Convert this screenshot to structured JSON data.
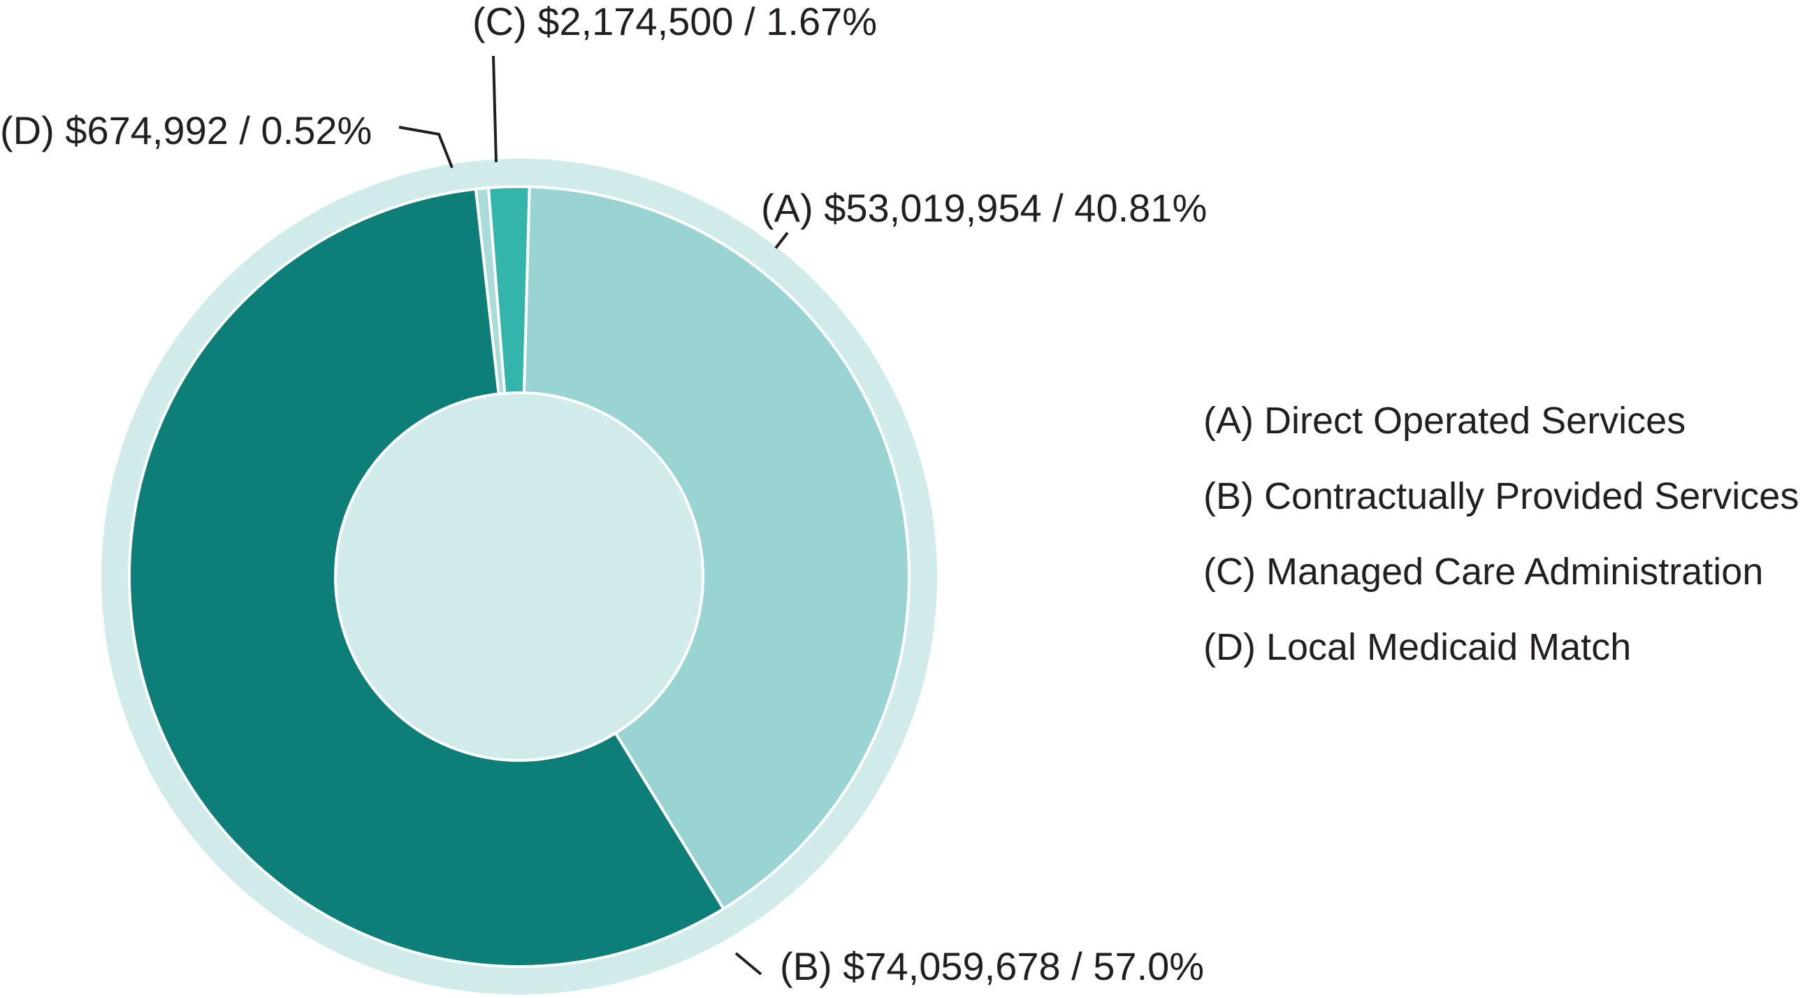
{
  "chart_data": {
    "type": "pie",
    "variant": "donut",
    "slices": [
      {
        "key": "A",
        "name": "Direct Operated Services",
        "value": 53019954,
        "percent": 40.81,
        "label": "(A) $53,019,954 / 40.81%",
        "color": "#99d4d2"
      },
      {
        "key": "B",
        "name": "Contractually Provided Services",
        "value": 74059678,
        "percent": 57.0,
        "label": "(B) $74,059,678 / 57.0%",
        "color": "#0d7e78"
      },
      {
        "key": "D",
        "name": "Local Medicaid Match",
        "value": 674992,
        "percent": 0.52,
        "label": "(D) $674,992 / 0.52%",
        "color": "#a9dbd9"
      },
      {
        "key": "C",
        "name": "Managed Care Administration",
        "value": 2174500,
        "percent": 1.67,
        "label": "(C) $2,174,500 / 1.67%",
        "color": "#33b5ab"
      }
    ],
    "ring_color": "#d1ebeb",
    "legend": [
      "(A) Direct Operated Services",
      "(B) Contractually Provided Services",
      "(C) Managed Care Administration",
      "(D) Local Medicaid Match"
    ],
    "legend_position": "right"
  }
}
